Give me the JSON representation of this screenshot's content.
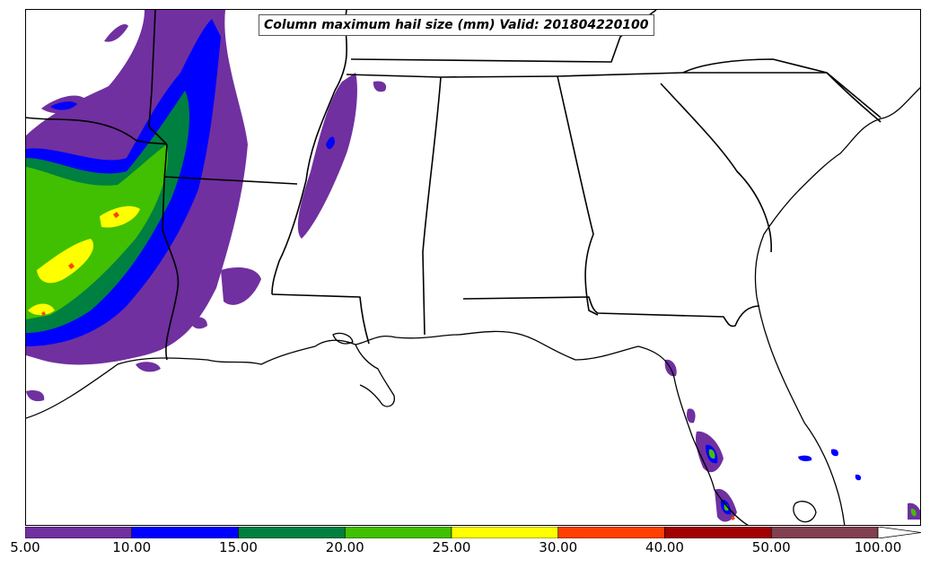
{
  "title": "Column maximum hail size (mm) Valid: 201804220100",
  "colorbar": {
    "ticks": [
      "5.00",
      "10.00",
      "15.00",
      "20.00",
      "25.00",
      "30.00",
      "40.00",
      "50.00",
      "100.00"
    ],
    "colors": [
      "#7030a0",
      "#0000ff",
      "#008040",
      "#40c000",
      "#ffff00",
      "#ff4000",
      "#a00000",
      "#804050"
    ],
    "extend": "max"
  },
  "map": {
    "type": "filled contour map",
    "field_colors": {
      "level_5_10": "#7030a0",
      "level_10_15": "#0000ff",
      "level_15_20": "#008040",
      "level_20_25": "#40c000",
      "level_25_30": "#ffff00",
      "level_30_40": "#ff4000"
    },
    "boundary_color": "#000000"
  }
}
